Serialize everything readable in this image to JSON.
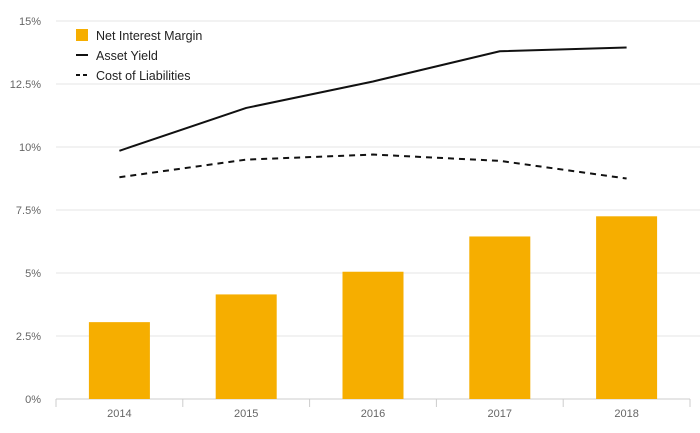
{
  "chart_data": {
    "type": "bar",
    "categories": [
      "2014",
      "2015",
      "2016",
      "2017",
      "2018"
    ],
    "ylim": [
      0,
      15
    ],
    "y_ticks": [
      0,
      2.5,
      5,
      7.5,
      10,
      12.5,
      15
    ],
    "y_tick_labels": [
      "0%",
      "2.5%",
      "5%",
      "7.5%",
      "10%",
      "12.5%",
      "15%"
    ],
    "grid": true,
    "legend_position": "top-left",
    "series": [
      {
        "name": "Net Interest Margin",
        "kind": "bar",
        "color": "#f6ae00",
        "values": [
          3.05,
          4.15,
          5.05,
          6.45,
          7.25
        ]
      },
      {
        "name": "Asset Yield",
        "kind": "line",
        "style": "solid",
        "color": "#111111",
        "values": [
          9.85,
          11.55,
          12.6,
          13.8,
          13.95
        ]
      },
      {
        "name": "Cost of Liabilities",
        "kind": "line",
        "style": "dashed",
        "color": "#111111",
        "values": [
          8.8,
          9.5,
          9.7,
          9.45,
          8.75
        ]
      }
    ]
  }
}
